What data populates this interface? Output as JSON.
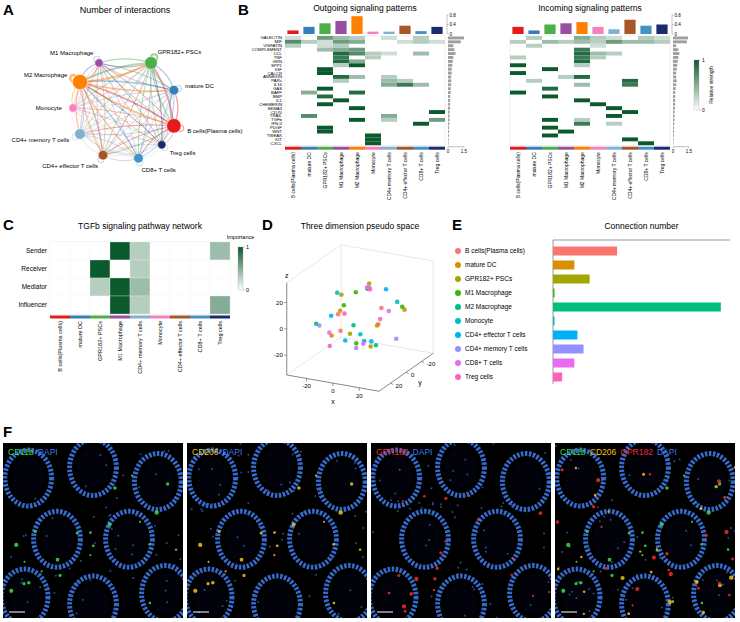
{
  "chart_data": [
    {
      "type": "network",
      "panel": "A",
      "title": "Number of interactions",
      "nodes": [
        "B cells(Plasma cells)",
        "mature DC",
        "GPR182+ PSCs",
        "M1 Macrophage",
        "M2 Macrophage",
        "Monocyte",
        "CD4+ memory T cells",
        "CD4+ effector T cells",
        "CD8+ T cells",
        "Treg cells"
      ],
      "colors": [
        "#e41a1c",
        "#377eb8",
        "#4daf4a",
        "#984ea3",
        "#ff7f00",
        "#f781bf",
        "#80b1d3",
        "#a65628",
        "#4292c6",
        "#1b2a6b"
      ],
      "node_sizes": [
        9,
        4,
        7,
        3,
        10,
        3,
        5,
        4,
        4,
        3
      ],
      "weights": [
        [
          3,
          4,
          5,
          3,
          6,
          2,
          3,
          3,
          3,
          2
        ],
        [
          4,
          2,
          4,
          3,
          5,
          2,
          2,
          2,
          2,
          2
        ],
        [
          5,
          4,
          6,
          4,
          7,
          3,
          3,
          3,
          3,
          3
        ],
        [
          3,
          3,
          4,
          2,
          4,
          2,
          2,
          2,
          2,
          2
        ],
        [
          6,
          5,
          7,
          4,
          8,
          3,
          4,
          4,
          4,
          3
        ],
        [
          2,
          2,
          3,
          2,
          3,
          1,
          1,
          1,
          1,
          1
        ],
        [
          3,
          2,
          3,
          2,
          4,
          1,
          2,
          2,
          2,
          1
        ],
        [
          3,
          2,
          3,
          2,
          4,
          1,
          2,
          2,
          2,
          1
        ],
        [
          3,
          2,
          3,
          2,
          4,
          1,
          2,
          2,
          2,
          1
        ],
        [
          2,
          2,
          3,
          2,
          3,
          1,
          1,
          1,
          1,
          1
        ]
      ]
    },
    {
      "type": "heatmap",
      "panel": "B",
      "title": "Outgoing signaling patterns",
      "rows": [
        "GALECTIN",
        "MIF",
        "VISFATIN",
        "COMPLEMENT",
        "CCL",
        "TNF",
        "GRN",
        "SPP1",
        "IGF",
        "CALCR",
        "ANNEXIN",
        "PARs",
        "IL16",
        "GAS",
        "BAFF",
        "BMP",
        "IL1",
        "CHEMERIN",
        "SEMA3",
        "CD70",
        "TRAIL",
        "TGFb",
        "IFN-II",
        "PDGF",
        "WNT",
        "TWEAK",
        "KIT",
        "CXCL"
      ],
      "columns": [
        "B cells(Plasma cells)",
        "mature DC",
        "GPR182+ PSCs",
        "M1 Macrophage",
        "M2 Macrophage",
        "Monocyte",
        "CD4+ memory T cells",
        "CD4+ effector T cells",
        "CD8+ T cells",
        "Treg cells"
      ],
      "colors": [
        "#e41a1c",
        "#377eb8",
        "#4daf4a",
        "#984ea3",
        "#ff7f00",
        "#f781bf",
        "#80b1d3",
        "#a65628",
        "#4292c6",
        "#1b2a6b"
      ],
      "cells": [
        [
          0,
          0,
          0.2
        ],
        [
          0,
          2,
          0.6
        ],
        [
          0,
          3,
          0.4
        ],
        [
          0,
          4,
          0.3
        ],
        [
          0,
          6,
          0.2
        ],
        [
          0,
          8,
          0.3
        ],
        [
          1,
          0,
          0.7
        ],
        [
          1,
          1,
          0.3
        ],
        [
          1,
          2,
          0.2
        ],
        [
          1,
          3,
          0.6
        ],
        [
          1,
          4,
          0.5
        ],
        [
          1,
          7,
          0.2
        ],
        [
          1,
          8,
          0.3
        ],
        [
          1,
          9,
          0.2
        ],
        [
          2,
          0,
          0.3
        ],
        [
          2,
          2,
          0.2
        ],
        [
          2,
          3,
          0.3
        ],
        [
          3,
          2,
          0.4
        ],
        [
          3,
          3,
          0.5
        ],
        [
          3,
          4,
          0.6
        ],
        [
          4,
          3,
          0.9
        ],
        [
          4,
          4,
          0.7
        ],
        [
          4,
          5,
          0.3
        ],
        [
          4,
          6,
          0.2
        ],
        [
          4,
          8,
          0.4
        ],
        [
          5,
          3,
          0.8
        ],
        [
          5,
          5,
          0.3
        ],
        [
          6,
          3,
          0.9
        ],
        [
          6,
          4,
          0.5
        ],
        [
          7,
          3,
          0.3
        ],
        [
          7,
          4,
          1
        ],
        [
          8,
          2,
          1
        ],
        [
          9,
          2,
          1
        ],
        [
          10,
          3,
          0.9
        ],
        [
          10,
          4,
          0.4
        ],
        [
          10,
          6,
          0.3
        ],
        [
          11,
          3,
          0.3
        ],
        [
          11,
          6,
          0.4
        ],
        [
          11,
          7,
          0.3
        ],
        [
          12,
          6,
          0.5
        ],
        [
          12,
          7,
          0.8
        ],
        [
          12,
          8,
          0.4
        ],
        [
          13,
          2,
          1
        ],
        [
          14,
          1,
          0.5
        ],
        [
          14,
          4,
          0.9
        ],
        [
          15,
          2,
          0.9
        ],
        [
          16,
          3,
          1
        ],
        [
          17,
          2,
          1
        ],
        [
          18,
          4,
          1
        ],
        [
          19,
          9,
          1
        ],
        [
          20,
          1,
          0.7
        ],
        [
          20,
          6,
          0.5
        ],
        [
          21,
          4,
          1
        ],
        [
          21,
          6,
          0.3
        ],
        [
          21,
          9,
          0.6
        ],
        [
          22,
          8,
          1
        ],
        [
          23,
          2,
          1
        ],
        [
          24,
          2,
          1
        ],
        [
          25,
          5,
          1
        ],
        [
          26,
          5,
          1
        ],
        [
          27,
          5,
          1
        ]
      ],
      "column_totals": [
        0.15,
        0.3,
        0.45,
        0.55,
        0.75,
        0.1,
        0.1,
        0.35,
        0.12,
        0.3
      ],
      "column_totals_range": [
        0,
        0.8
      ],
      "column_totals_ticks": [
        0,
        0.4,
        0.8
      ],
      "row_totals": [
        1.5,
        1.2,
        0.5,
        0.6,
        0.7,
        0.5,
        0.45,
        0.4,
        0.35,
        0.35,
        0.3,
        0.3,
        0.3,
        0.25,
        0.25,
        0.2,
        0.2,
        0.2,
        0.2,
        0.15,
        0.15,
        0.15,
        0.12,
        0.1,
        0.1,
        0.08,
        0.06,
        0.05
      ],
      "row_totals_range": [
        0,
        1.5
      ],
      "row_totals_ticks": [
        0,
        1.5
      ]
    },
    {
      "type": "heatmap",
      "title": "Incoming signaling patterns",
      "columns": [
        "B cells(Plasma cells)",
        "mature DC",
        "GPR182+ PSCs",
        "M1 Macrophage",
        "M2 Macrophage",
        "Monocyte",
        "CD4+ memory T cells",
        "CD4+ effector T cells",
        "CD8+ T cells",
        "Treg cells"
      ],
      "colors": [
        "#e41a1c",
        "#377eb8",
        "#4daf4a",
        "#984ea3",
        "#ff7f00",
        "#f781bf",
        "#80b1d3",
        "#a65628",
        "#4292c6",
        "#1b2a6b"
      ],
      "cells": [
        [
          0,
          1,
          0.3
        ],
        [
          0,
          4,
          0.5
        ],
        [
          0,
          5,
          0.3
        ],
        [
          0,
          6,
          0.2
        ],
        [
          0,
          8,
          0.3
        ],
        [
          0,
          9,
          0.2
        ],
        [
          1,
          0,
          0.3
        ],
        [
          1,
          2,
          0.4
        ],
        [
          1,
          3,
          0.3
        ],
        [
          1,
          4,
          0.4
        ],
        [
          1,
          5,
          0.3
        ],
        [
          1,
          6,
          0.6
        ],
        [
          1,
          7,
          0.4
        ],
        [
          1,
          8,
          0.4
        ],
        [
          1,
          9,
          0.3
        ],
        [
          2,
          1,
          0.3
        ],
        [
          2,
          5,
          0.2
        ],
        [
          3,
          4,
          0.8
        ],
        [
          4,
          4,
          0.9
        ],
        [
          4,
          5,
          0.4
        ],
        [
          4,
          6,
          0.3
        ],
        [
          5,
          0,
          0.3
        ],
        [
          5,
          4,
          0.8
        ],
        [
          5,
          5,
          0.3
        ],
        [
          6,
          4,
          0.9
        ],
        [
          7,
          0,
          1
        ],
        [
          7,
          4,
          0.3
        ],
        [
          8,
          2,
          1
        ],
        [
          9,
          0,
          1
        ],
        [
          10,
          3,
          0.3
        ],
        [
          10,
          4,
          0.9
        ],
        [
          11,
          1,
          0.3
        ],
        [
          11,
          7,
          0.9
        ],
        [
          12,
          4,
          0.4
        ],
        [
          12,
          7,
          0.8
        ],
        [
          13,
          2,
          0.9
        ],
        [
          14,
          0,
          1
        ],
        [
          15,
          2,
          1
        ],
        [
          16,
          4,
          1
        ],
        [
          17,
          5,
          1
        ],
        [
          18,
          6,
          1
        ],
        [
          19,
          7,
          1
        ],
        [
          20,
          6,
          1
        ],
        [
          21,
          2,
          1
        ],
        [
          21,
          4,
          0.3
        ],
        [
          22,
          4,
          0.8
        ],
        [
          22,
          6,
          0.3
        ],
        [
          23,
          2,
          1
        ],
        [
          24,
          3,
          1
        ],
        [
          25,
          2,
          1
        ],
        [
          26,
          7,
          1
        ],
        [
          27,
          8,
          1
        ]
      ],
      "column_totals": [
        0.3,
        0.15,
        0.4,
        0.45,
        0.5,
        0.3,
        0.2,
        0.6,
        0.35,
        0.4
      ],
      "column_totals_range": [
        0,
        0.8
      ],
      "column_totals_ticks": [
        0,
        0.4,
        0.8
      ],
      "row_totals": [
        1.4,
        1.3,
        0.3,
        0.5,
        0.6,
        0.5,
        0.45,
        0.4,
        0.35,
        0.3,
        0.3,
        0.35,
        0.3,
        0.25,
        0.2,
        0.2,
        0.2,
        0.2,
        0.18,
        0.15,
        0.15,
        0.15,
        0.12,
        0.1,
        0.1,
        0.08,
        0.06,
        0.05
      ],
      "row_totals_range": [
        0,
        1.5
      ],
      "row_totals_ticks": [
        0,
        1.5
      ],
      "colorbar_label": "Relative strength",
      "colorbar_range": [
        0,
        1
      ],
      "colorbar_ticks": [
        0,
        1
      ]
    },
    {
      "type": "heatmap",
      "panel": "C",
      "title": "TGFb signaling pathway network",
      "rows": [
        "Sender",
        "Receiver",
        "Mediator",
        "Influencer"
      ],
      "columns": [
        "B cells(Plasma cells)",
        "mature DC",
        "GPR182+ PSCs",
        "M1 Macrophage",
        "CD4+ memory T cells",
        "Monocyte",
        "CD4+ effector T cells",
        "CD8+ T cells",
        "Treg cells"
      ],
      "colors": [
        "#e41a1c",
        "#377eb8",
        "#4daf4a",
        "#984ea3",
        "#80b1d3",
        "#f781bf",
        "#a65628",
        "#4292c6",
        "#1b2a6b"
      ],
      "values": [
        [
          0,
          0,
          0,
          1,
          0.3,
          0,
          0,
          0,
          0.4
        ],
        [
          0,
          0,
          1,
          0,
          0.3,
          0,
          0,
          0,
          0
        ],
        [
          0,
          0,
          0.3,
          1,
          0.4,
          0,
          0,
          0,
          0
        ],
        [
          0,
          0,
          0,
          1,
          0.3,
          0,
          0,
          0,
          0.5
        ]
      ],
      "colorbar_label": "Importance",
      "colorbar_range": [
        0,
        1
      ],
      "colorbar_ticks": [
        0,
        1
      ]
    },
    {
      "type": "scatter3d",
      "panel": "D",
      "title": "Three dimension pseudo space",
      "xlabel": "x",
      "ylabel": "y",
      "zlabel": "z",
      "xlim": [
        -35,
        35
      ],
      "ylim": [
        -35,
        35
      ],
      "zlim": [
        -35,
        35
      ],
      "xticks": [
        -20,
        0,
        20
      ],
      "yticks": [
        -20,
        0,
        20
      ],
      "zticks": [
        -20,
        0,
        20
      ],
      "series": [
        {
          "color": "#F8766D",
          "x": [
            -12,
            5,
            18,
            -3
          ],
          "y": [
            8,
            -15,
            3,
            20
          ],
          "z": [
            4,
            -10,
            12,
            -2
          ]
        },
        {
          "color": "#D89000",
          "x": [
            10,
            -8,
            22,
            -18
          ],
          "y": [
            -5,
            12,
            -20,
            6
          ],
          "z": [
            -6,
            9,
            2,
            -14
          ]
        },
        {
          "color": "#A3A500",
          "x": [
            -20,
            3,
            14,
            -6
          ],
          "y": [
            -10,
            18,
            10,
            -22
          ],
          "z": [
            10,
            -4,
            -15,
            16
          ]
        },
        {
          "color": "#39B600",
          "x": [
            6,
            -14,
            25,
            -2
          ],
          "y": [
            15,
            -3,
            -12,
            2
          ],
          "z": [
            -12,
            6,
            8,
            20
          ]
        },
        {
          "color": "#00BF7D",
          "x": [
            -5,
            15,
            -25,
            8
          ],
          "y": [
            -18,
            5,
            14,
            22
          ],
          "z": [
            14,
            -16,
            -3,
            5
          ]
        },
        {
          "color": "#00BFC4",
          "x": [
            12,
            -22,
            2,
            20
          ],
          "y": [
            20,
            -8,
            -2,
            -14
          ],
          "z": [
            -2,
            12,
            -18,
            10
          ]
        },
        {
          "color": "#00B0F6",
          "x": [
            -10,
            8,
            18,
            -16
          ],
          "y": [
            2,
            -20,
            16,
            10
          ],
          "z": [
            -18,
            15,
            -8,
            3
          ]
        },
        {
          "color": "#9590FF",
          "x": [
            0,
            -25,
            10,
            24
          ],
          "y": [
            -12,
            10,
            22,
            -6
          ],
          "z": [
            18,
            -6,
            -12,
            -14
          ]
        },
        {
          "color": "#E76BF3",
          "x": [
            -15,
            16,
            -4,
            6
          ],
          "y": [
            14,
            -10,
            -16,
            6
          ],
          "z": [
            -8,
            4,
            16,
            -16
          ]
        },
        {
          "color": "#FF62BC",
          "x": [
            20,
            -10,
            4,
            -20
          ],
          "y": [
            8,
            22,
            -6,
            -14
          ],
          "z": [
            6,
            -14,
            20,
            -6
          ]
        }
      ]
    },
    {
      "type": "bar",
      "panel": "E",
      "title": "Connection number",
      "orientation": "horizontal",
      "tick_labels": false,
      "categories": [
        "B cells(Plasma cells)",
        "mature DC",
        "GPR182+ PSCs",
        "M1 Macrophage",
        "M2 Macrophage",
        "Monocyte",
        "CD4+ effector T cells",
        "CD4+ memory T cells",
        "CD8+ T cells",
        "Treg cells"
      ],
      "colors": [
        "#F8766D",
        "#D89000",
        "#A3A500",
        "#39B600",
        "#00BF7D",
        "#00BFC4",
        "#00B0F6",
        "#9590FF",
        "#E76BF3",
        "#FF62BC"
      ],
      "values": [
        21,
        7,
        12,
        0.5,
        55,
        0.5,
        8,
        10,
        7,
        3
      ],
      "xlim": [
        0,
        58
      ]
    }
  ],
  "image_panel": {
    "panel": "F",
    "images": [
      {
        "labels": [
          {
            "text": "CD11b",
            "color": "#3ddc4a"
          },
          {
            "text": "DAPI",
            "color": "#3f7cf0"
          }
        ]
      },
      {
        "labels": [
          {
            "text": "CD206",
            "color": "#f2c617"
          },
          {
            "text": "DAPI",
            "color": "#3f7cf0"
          }
        ]
      },
      {
        "labels": [
          {
            "text": "GPR182",
            "color": "#ee2b2b"
          },
          {
            "text": "DAPI",
            "color": "#3f7cf0"
          }
        ]
      },
      {
        "labels": [
          {
            "text": "CD11b",
            "color": "#3ddc4a"
          },
          {
            "text": "CD206",
            "color": "#f2c617"
          },
          {
            "text": "GPR182",
            "color": "#ee2b2b"
          },
          {
            "text": "DAPI",
            "color": "#3f7cf0"
          }
        ]
      }
    ]
  }
}
